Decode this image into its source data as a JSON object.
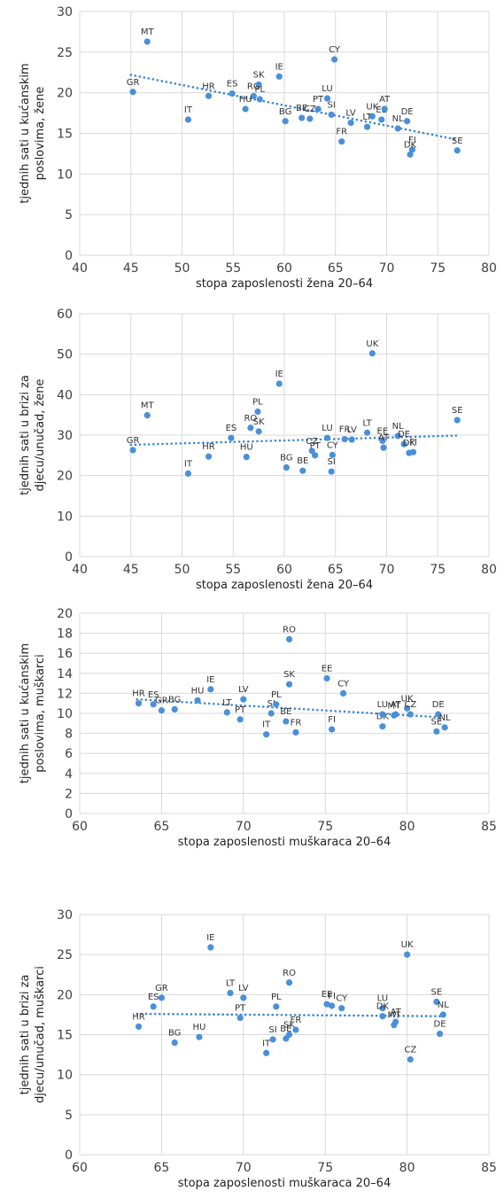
{
  "colors": {
    "point": "#4a90d9",
    "trend": "#3f86d0",
    "grid": "#d9d9d9"
  },
  "chart_data": [
    {
      "type": "scatter",
      "title": "",
      "xlabel": "stopa zaposlenosti žena 20–64",
      "ylabel_lines": [
        "tjednih sati u kućanskim",
        "poslovima, žene"
      ],
      "xlim": [
        40,
        80
      ],
      "xticks": [
        40,
        45,
        50,
        55,
        60,
        65,
        70,
        75,
        80
      ],
      "ylim": [
        0,
        30
      ],
      "yticks": [
        0,
        5,
        10,
        15,
        20,
        25,
        30
      ],
      "trend": {
        "x": [
          45,
          77
        ],
        "y": [
          22.2,
          14.2
        ]
      },
      "points": [
        {
          "label": "MT",
          "x": 46.6,
          "y": 26.3
        },
        {
          "label": "GR",
          "x": 45.2,
          "y": 20.1
        },
        {
          "label": "IT",
          "x": 50.6,
          "y": 16.7
        },
        {
          "label": "HR",
          "x": 52.6,
          "y": 19.6
        },
        {
          "label": "ES",
          "x": 54.9,
          "y": 19.9
        },
        {
          "label": "RO",
          "x": 57.0,
          "y": 19.6
        },
        {
          "label": "SK",
          "x": 57.5,
          "y": 21.0
        },
        {
          "label": "PL",
          "x": 57.6,
          "y": 19.2
        },
        {
          "label": "HU",
          "x": 56.2,
          "y": 18.0
        },
        {
          "label": "IE",
          "x": 59.5,
          "y": 22.0
        },
        {
          "label": "BG",
          "x": 60.1,
          "y": 16.5
        },
        {
          "label": "BE",
          "x": 61.7,
          "y": 16.9
        },
        {
          "label": "CZ",
          "x": 62.5,
          "y": 16.8
        },
        {
          "label": "PT",
          "x": 63.3,
          "y": 18.0
        },
        {
          "label": "LU",
          "x": 64.2,
          "y": 19.3
        },
        {
          "label": "SI",
          "x": 64.6,
          "y": 17.3
        },
        {
          "label": "CY",
          "x": 64.9,
          "y": 24.1
        },
        {
          "label": "FR",
          "x": 65.6,
          "y": 14.0
        },
        {
          "label": "LV",
          "x": 66.5,
          "y": 16.3
        },
        {
          "label": "LT",
          "x": 68.1,
          "y": 15.8
        },
        {
          "label": "UK",
          "x": 68.6,
          "y": 17.1
        },
        {
          "label": "EE",
          "x": 69.5,
          "y": 16.7
        },
        {
          "label": "AT",
          "x": 69.8,
          "y": 18.0
        },
        {
          "label": "NL",
          "x": 71.1,
          "y": 15.6
        },
        {
          "label": "DE",
          "x": 72.0,
          "y": 16.5
        },
        {
          "label": "FI",
          "x": 72.5,
          "y": 13.0
        },
        {
          "label": "DK",
          "x": 72.3,
          "y": 12.4
        },
        {
          "label": "SE",
          "x": 76.9,
          "y": 12.9
        }
      ]
    },
    {
      "type": "scatter",
      "title": "",
      "xlabel": "stopa zaposlenosti žena 20–64",
      "ylabel_lines": [
        "tjednih sati u brizi za",
        "djecu/unučad, žene"
      ],
      "xlim": [
        40,
        80
      ],
      "xticks": [
        40,
        45,
        50,
        55,
        60,
        65,
        70,
        75,
        80
      ],
      "ylim": [
        0,
        60
      ],
      "yticks": [
        0,
        10,
        20,
        30,
        40,
        50,
        60
      ],
      "trend": {
        "x": [
          45,
          77
        ],
        "y": [
          27.6,
          29.9
        ]
      },
      "points": [
        {
          "label": "MT",
          "x": 46.6,
          "y": 34.9
        },
        {
          "label": "GR",
          "x": 45.2,
          "y": 26.3
        },
        {
          "label": "IT",
          "x": 50.6,
          "y": 20.5
        },
        {
          "label": "HR",
          "x": 52.6,
          "y": 24.7
        },
        {
          "label": "ES",
          "x": 54.8,
          "y": 29.3
        },
        {
          "label": "RO",
          "x": 56.7,
          "y": 31.8
        },
        {
          "label": "PL",
          "x": 57.4,
          "y": 35.8
        },
        {
          "label": "SK",
          "x": 57.5,
          "y": 30.9
        },
        {
          "label": "HU",
          "x": 56.3,
          "y": 24.6
        },
        {
          "label": "IE",
          "x": 59.5,
          "y": 42.7
        },
        {
          "label": "BG",
          "x": 60.2,
          "y": 22.0
        },
        {
          "label": "BE",
          "x": 61.8,
          "y": 21.2
        },
        {
          "label": "CZ",
          "x": 62.7,
          "y": 26.1
        },
        {
          "label": "PT",
          "x": 63.0,
          "y": 25.0
        },
        {
          "label": "LU",
          "x": 64.2,
          "y": 29.3
        },
        {
          "label": "CY",
          "x": 64.7,
          "y": 25.1
        },
        {
          "label": "SI",
          "x": 64.6,
          "y": 21.0
        },
        {
          "label": "FR",
          "x": 65.9,
          "y": 29.0
        },
        {
          "label": "LV",
          "x": 66.6,
          "y": 28.9
        },
        {
          "label": "LT",
          "x": 68.1,
          "y": 30.6
        },
        {
          "label": "UK",
          "x": 68.6,
          "y": 50.2
        },
        {
          "label": "EE",
          "x": 69.6,
          "y": 28.6
        },
        {
          "label": "AT",
          "x": 69.7,
          "y": 26.9
        },
        {
          "label": "NL",
          "x": 71.1,
          "y": 29.8
        },
        {
          "label": "DE",
          "x": 71.7,
          "y": 27.8
        },
        {
          "label": "FI",
          "x": 72.6,
          "y": 25.8
        },
        {
          "label": "DK",
          "x": 72.2,
          "y": 25.6
        },
        {
          "label": "SE",
          "x": 76.9,
          "y": 33.7
        }
      ]
    },
    {
      "type": "scatter",
      "title": "",
      "xlabel": "stopa zaposlenosti muškaraca 20–64",
      "ylabel_lines": [
        "tjednih sati u kućanskim",
        "poslovima, muškarci"
      ],
      "xlim": [
        60,
        85
      ],
      "xticks": [
        60,
        65,
        70,
        75,
        80,
        85
      ],
      "ylim": [
        0,
        20
      ],
      "yticks": [
        0,
        2,
        4,
        6,
        8,
        10,
        12,
        14,
        16,
        18,
        20
      ],
      "trend": {
        "x": [
          63.5,
          82.2
        ],
        "y": [
          11.4,
          9.6
        ]
      },
      "points": [
        {
          "label": "HR",
          "x": 63.6,
          "y": 11.0
        },
        {
          "label": "ES",
          "x": 64.5,
          "y": 10.9
        },
        {
          "label": "GR",
          "x": 65.0,
          "y": 10.3
        },
        {
          "label": "BG",
          "x": 65.8,
          "y": 10.4
        },
        {
          "label": "HU",
          "x": 67.2,
          "y": 11.3
        },
        {
          "label": "IE",
          "x": 68.0,
          "y": 12.4
        },
        {
          "label": "LT",
          "x": 69.0,
          "y": 10.1
        },
        {
          "label": "PT",
          "x": 69.8,
          "y": 9.4
        },
        {
          "label": "LV",
          "x": 70.0,
          "y": 11.4
        },
        {
          "label": "IT",
          "x": 71.4,
          "y": 7.9
        },
        {
          "label": "SI",
          "x": 71.7,
          "y": 10.0
        },
        {
          "label": "PL",
          "x": 72.0,
          "y": 10.9
        },
        {
          "label": "BE",
          "x": 72.6,
          "y": 9.2
        },
        {
          "label": "RO",
          "x": 72.8,
          "y": 17.4
        },
        {
          "label": "SK",
          "x": 72.8,
          "y": 12.9
        },
        {
          "label": "FR",
          "x": 73.2,
          "y": 8.1
        },
        {
          "label": "EE",
          "x": 75.1,
          "y": 13.5
        },
        {
          "label": "FI",
          "x": 75.4,
          "y": 8.4
        },
        {
          "label": "CY",
          "x": 76.1,
          "y": 12.0
        },
        {
          "label": "DK",
          "x": 78.5,
          "y": 8.7
        },
        {
          "label": "LU",
          "x": 78.5,
          "y": 9.9
        },
        {
          "label": "MT",
          "x": 79.2,
          "y": 9.8
        },
        {
          "label": "AT",
          "x": 79.3,
          "y": 9.9
        },
        {
          "label": "UK",
          "x": 80.0,
          "y": 10.5
        },
        {
          "label": "CZ",
          "x": 80.2,
          "y": 9.9
        },
        {
          "label": "SE",
          "x": 81.8,
          "y": 8.2
        },
        {
          "label": "DE",
          "x": 81.9,
          "y": 9.9
        },
        {
          "label": "NL",
          "x": 82.3,
          "y": 8.6
        }
      ]
    },
    {
      "type": "scatter",
      "title": "",
      "xlabel": "stopa zaposlenosti muškaraca 20–64",
      "ylabel_lines": [
        "tjednih sati u brizi za",
        "djecu/unučad, muškarci"
      ],
      "xlim": [
        60,
        85
      ],
      "xticks": [
        60,
        65,
        70,
        75,
        80,
        85
      ],
      "ylim": [
        0,
        30
      ],
      "yticks": [
        0,
        5,
        10,
        15,
        20,
        25,
        30
      ],
      "trend": {
        "x": [
          63.5,
          82.2
        ],
        "y": [
          17.6,
          17.3
        ]
      },
      "points": [
        {
          "label": "HR",
          "x": 63.6,
          "y": 16.0
        },
        {
          "label": "ES",
          "x": 64.5,
          "y": 18.5
        },
        {
          "label": "GR",
          "x": 65.0,
          "y": 19.6
        },
        {
          "label": "BG",
          "x": 65.8,
          "y": 14.0
        },
        {
          "label": "HU",
          "x": 67.3,
          "y": 14.7
        },
        {
          "label": "IE",
          "x": 68.0,
          "y": 25.9
        },
        {
          "label": "LT",
          "x": 69.2,
          "y": 20.2
        },
        {
          "label": "PT",
          "x": 69.8,
          "y": 17.1
        },
        {
          "label": "LV",
          "x": 70.0,
          "y": 19.6
        },
        {
          "label": "IT",
          "x": 71.4,
          "y": 12.7
        },
        {
          "label": "SI",
          "x": 71.8,
          "y": 14.4
        },
        {
          "label": "PL",
          "x": 72.0,
          "y": 18.5
        },
        {
          "label": "BE",
          "x": 72.6,
          "y": 14.5
        },
        {
          "label": "RO",
          "x": 72.8,
          "y": 21.5
        },
        {
          "label": "SK",
          "x": 72.8,
          "y": 15.0
        },
        {
          "label": "FR",
          "x": 73.2,
          "y": 15.6
        },
        {
          "label": "EE",
          "x": 75.1,
          "y": 18.8
        },
        {
          "label": "FI",
          "x": 75.4,
          "y": 18.6
        },
        {
          "label": "CY",
          "x": 76.0,
          "y": 18.3
        },
        {
          "label": "LU",
          "x": 78.5,
          "y": 18.3
        },
        {
          "label": "DK",
          "x": 78.5,
          "y": 17.3
        },
        {
          "label": "MT",
          "x": 79.2,
          "y": 16.2
        },
        {
          "label": "AT",
          "x": 79.3,
          "y": 16.6
        },
        {
          "label": "UK",
          "x": 80.0,
          "y": 25.0
        },
        {
          "label": "CZ",
          "x": 80.2,
          "y": 11.9
        },
        {
          "label": "SE",
          "x": 81.8,
          "y": 19.1
        },
        {
          "label": "NL",
          "x": 82.2,
          "y": 17.5
        },
        {
          "label": "DE",
          "x": 82.0,
          "y": 15.1
        }
      ]
    }
  ]
}
